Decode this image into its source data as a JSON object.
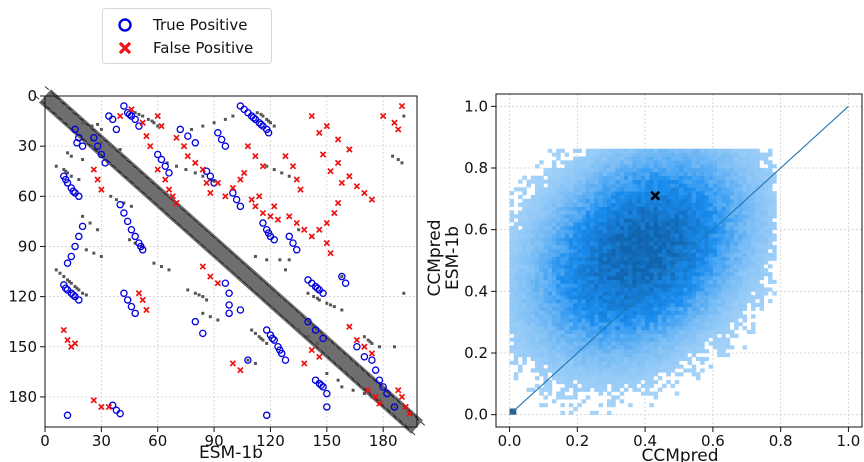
{
  "legend": {
    "items": [
      {
        "label": "True Positive",
        "marker": "circle",
        "color": "#0000dd"
      },
      {
        "label": "False Positive",
        "marker": "x",
        "color": "#ee1111"
      }
    ]
  },
  "chart_data": [
    {
      "type": "scatter",
      "xlabel": "ESM-1b",
      "ylabel": "",
      "xlim": [
        0,
        198
      ],
      "ylim": [
        198,
        0
      ],
      "xticks": [
        0,
        30,
        60,
        90,
        120,
        150,
        180
      ],
      "yticks": [
        0,
        30,
        60,
        90,
        120,
        150,
        180
      ],
      "grid": true,
      "background_band": {
        "color": "#555555",
        "description_free": true
      },
      "series": [
        {
          "name": "True Positive",
          "marker": "circle",
          "color": "#0000dd",
          "points": [
            [
              10,
              48
            ],
            [
              12,
              52
            ],
            [
              14,
              55
            ],
            [
              16,
              58
            ],
            [
              18,
              60
            ],
            [
              11,
              50
            ],
            [
              15,
              57
            ],
            [
              10,
              113
            ],
            [
              12,
              116
            ],
            [
              14,
              118
            ],
            [
              16,
              120
            ],
            [
              18,
              122
            ],
            [
              11,
              115
            ],
            [
              15,
              119
            ],
            [
              16,
              20
            ],
            [
              18,
              25
            ],
            [
              20,
              30
            ],
            [
              17,
              28
            ],
            [
              42,
              6
            ],
            [
              44,
              10
            ],
            [
              46,
              12
            ],
            [
              48,
              14
            ],
            [
              50,
              18
            ],
            [
              45,
              11
            ],
            [
              34,
              12
            ],
            [
              36,
              14
            ],
            [
              38,
              20
            ],
            [
              40,
              65
            ],
            [
              42,
              70
            ],
            [
              44,
              75
            ],
            [
              46,
              80
            ],
            [
              48,
              84
            ],
            [
              50,
              88
            ],
            [
              52,
              92
            ],
            [
              51,
              90
            ],
            [
              20,
              78
            ],
            [
              18,
              84
            ],
            [
              16,
              90
            ],
            [
              14,
              96
            ],
            [
              12,
              100
            ],
            [
              26,
              25
            ],
            [
              28,
              30
            ],
            [
              30,
              35
            ],
            [
              32,
              40
            ],
            [
              42,
              118
            ],
            [
              44,
              122
            ],
            [
              46,
              126
            ],
            [
              48,
              130
            ],
            [
              60,
              35
            ],
            [
              62,
              38
            ],
            [
              64,
              42
            ],
            [
              66,
              46
            ],
            [
              72,
              20
            ],
            [
              76,
              24
            ],
            [
              80,
              28
            ],
            [
              86,
              45
            ],
            [
              88,
              48
            ],
            [
              90,
              52
            ],
            [
              100,
              58
            ],
            [
              102,
              62
            ],
            [
              104,
              66
            ],
            [
              104,
              6
            ],
            [
              106,
              8
            ],
            [
              108,
              10
            ],
            [
              110,
              12
            ],
            [
              112,
              14
            ],
            [
              114,
              16
            ],
            [
              116,
              18
            ],
            [
              118,
              20
            ],
            [
              119,
              22
            ],
            [
              111,
              13
            ],
            [
              115,
              17
            ],
            [
              92,
              22
            ],
            [
              94,
              26
            ],
            [
              96,
              30
            ],
            [
              116,
              76
            ],
            [
              118,
              80
            ],
            [
              120,
              84
            ],
            [
              122,
              86
            ],
            [
              119,
              82
            ],
            [
              96,
              112
            ],
            [
              98,
              118
            ],
            [
              98,
              125
            ],
            [
              98,
              130
            ],
            [
              118,
              140
            ],
            [
              120,
              143
            ],
            [
              122,
              146
            ],
            [
              124,
              150
            ],
            [
              126,
              154
            ],
            [
              128,
              158
            ],
            [
              121,
              145
            ],
            [
              125,
              152
            ],
            [
              130,
              84
            ],
            [
              132,
              88
            ],
            [
              134,
              92
            ],
            [
              140,
              110
            ],
            [
              142,
              112
            ],
            [
              144,
              114
            ],
            [
              146,
              116
            ],
            [
              148,
              118
            ],
            [
              145,
              115
            ],
            [
              140,
              135
            ],
            [
              144,
              140
            ],
            [
              148,
              145
            ],
            [
              144,
              170
            ],
            [
              146,
              172
            ],
            [
              148,
              174
            ],
            [
              150,
              178
            ],
            [
              147,
              173
            ],
            [
              158,
              108
            ],
            [
              160,
              112
            ],
            [
              174,
              158
            ],
            [
              176,
              164
            ],
            [
              178,
              170
            ],
            [
              180,
              174
            ],
            [
              182,
              178
            ],
            [
              166,
              150
            ],
            [
              170,
              156
            ],
            [
              36,
              185
            ],
            [
              38,
              188
            ],
            [
              40,
              190
            ],
            [
              80,
              135
            ],
            [
              84,
              142
            ],
            [
              12,
              191
            ],
            [
              118,
              191
            ],
            [
              150,
              186
            ],
            [
              186,
              186
            ],
            [
              108,
              158
            ],
            [
              104,
              128
            ]
          ]
        },
        {
          "name": "False Positive",
          "marker": "x",
          "color": "#ee1111",
          "points": [
            [
              40,
              12
            ],
            [
              46,
              8
            ],
            [
              52,
              16
            ],
            [
              54,
              24
            ],
            [
              56,
              30
            ],
            [
              60,
              12
            ],
            [
              62,
              18
            ],
            [
              70,
              25
            ],
            [
              74,
              30
            ],
            [
              76,
              36
            ],
            [
              80,
              40
            ],
            [
              84,
              44
            ],
            [
              86,
              52
            ],
            [
              88,
              58
            ],
            [
              92,
              52
            ],
            [
              96,
              60
            ],
            [
              100,
              55
            ],
            [
              104,
              50
            ],
            [
              106,
              46
            ],
            [
              110,
              62
            ],
            [
              112,
              66
            ],
            [
              114,
              60
            ],
            [
              116,
              70
            ],
            [
              120,
              72
            ],
            [
              122,
              66
            ],
            [
              124,
              74
            ],
            [
              130,
              72
            ],
            [
              134,
              76
            ],
            [
              138,
              80
            ],
            [
              142,
              84
            ],
            [
              146,
              80
            ],
            [
              150,
              76
            ],
            [
              150,
              88
            ],
            [
              152,
              94
            ],
            [
              154,
              70
            ],
            [
              156,
              64
            ],
            [
              148,
              35
            ],
            [
              152,
              45
            ],
            [
              156,
              40
            ],
            [
              158,
              52
            ],
            [
              162,
              48
            ],
            [
              166,
              54
            ],
            [
              170,
              58
            ],
            [
              174,
              62
            ],
            [
              142,
              12
            ],
            [
              146,
              22
            ],
            [
              150,
              18
            ],
            [
              156,
              26
            ],
            [
              162,
              32
            ],
            [
              180,
              12
            ],
            [
              186,
              16
            ],
            [
              190,
              6
            ],
            [
              188,
              20
            ],
            [
              128,
              36
            ],
            [
              132,
              42
            ],
            [
              134,
              50
            ],
            [
              136,
              56
            ],
            [
              108,
              30
            ],
            [
              112,
              36
            ],
            [
              116,
              42
            ],
            [
              60,
              44
            ],
            [
              64,
              50
            ],
            [
              66,
              56
            ],
            [
              68,
              60
            ],
            [
              70,
              64
            ],
            [
              26,
              44
            ],
            [
              28,
              50
            ],
            [
              30,
              56
            ],
            [
              10,
              140
            ],
            [
              12,
              146
            ],
            [
              14,
              150
            ],
            [
              16,
              148
            ],
            [
              26,
              182
            ],
            [
              30,
              186
            ],
            [
              34,
              186
            ],
            [
              50,
              118
            ],
            [
              52,
              122
            ],
            [
              54,
              128
            ],
            [
              84,
              102
            ],
            [
              88,
              108
            ],
            [
              92,
              112
            ],
            [
              162,
              138
            ],
            [
              166,
              146
            ],
            [
              170,
              150
            ],
            [
              174,
              154
            ],
            [
              188,
              176
            ],
            [
              190,
              180
            ],
            [
              192,
              186
            ],
            [
              194,
              190
            ],
            [
              138,
              160
            ],
            [
              142,
              152
            ],
            [
              146,
              156
            ],
            [
              172,
              176
            ],
            [
              176,
              180
            ],
            [
              178,
              184
            ],
            [
              100,
              160
            ],
            [
              104,
              164
            ]
          ]
        }
      ]
    },
    {
      "type": "heatmap",
      "xlabel": "CCMpred",
      "ylabel": "ESM-1b",
      "y_title_extra": "CCMpred",
      "xlim": [
        -0.04,
        1.04
      ],
      "ylim": [
        -0.04,
        1.04
      ],
      "xticks": [
        0.0,
        0.2,
        0.4,
        0.6,
        0.8,
        1.0
      ],
      "xtick_labels": [
        "0.0",
        "0.2",
        "0.4",
        "0.6",
        "0.8",
        "1.0"
      ],
      "yticks": [
        0.0,
        0.2,
        0.4,
        0.6,
        0.8,
        1.0
      ],
      "ytick_labels": [
        "0.0",
        "0.2",
        "0.4",
        "0.6",
        "0.8",
        "1.0"
      ],
      "grid": true,
      "colormap": [
        "#e8f3fc",
        "#1a8ef0",
        "#1060a8"
      ],
      "density_center": [
        0.38,
        0.52
      ],
      "reference_line": {
        "from": [
          0.0,
          0.0
        ],
        "to": [
          1.0,
          1.0
        ],
        "color": "#1f77b4"
      },
      "marker": {
        "x": 0.43,
        "y": 0.71,
        "symbol": "x",
        "color": "#000000"
      }
    }
  ]
}
